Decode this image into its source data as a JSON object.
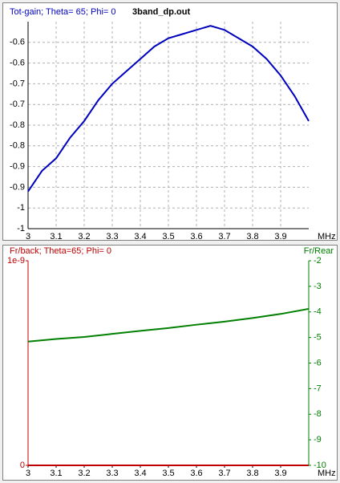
{
  "chart_data": [
    {
      "type": "line",
      "title": "Tot-gain; Theta= 65; Phi= 0",
      "subtitle": "3band_dp.out",
      "title_color": "#0000c0",
      "xlabel": "MHz",
      "x": [
        3.0,
        3.05,
        3.1,
        3.15,
        3.2,
        3.25,
        3.3,
        3.35,
        3.4,
        3.45,
        3.5,
        3.55,
        3.6,
        3.65,
        3.7,
        3.75,
        3.8,
        3.85,
        3.9,
        3.95,
        4.0
      ],
      "series": [
        {
          "color": "#0000c0",
          "values": [
            -0.91,
            -0.86,
            -0.83,
            -0.78,
            -0.74,
            -0.69,
            -0.65,
            -0.62,
            -0.59,
            -0.56,
            -0.54,
            -0.53,
            -0.52,
            -0.51,
            -0.52,
            -0.54,
            -0.56,
            -0.59,
            -0.63,
            -0.68,
            -0.74
          ]
        }
      ],
      "xlim": [
        3,
        4
      ],
      "xticks": [
        3,
        3.1,
        3.2,
        3.3,
        3.4,
        3.5,
        3.6,
        3.7,
        3.8,
        3.9
      ],
      "ylim": [
        -1,
        -0.5
      ],
      "ycolor": "#000000",
      "yticks": [
        {
          "value": -0.55,
          "label": "-0.6"
        },
        -0.6,
        {
          "value": -0.65,
          "label": "-0.7"
        },
        -0.7,
        {
          "value": -0.75,
          "label": "-0.8"
        },
        -0.8,
        {
          "value": -0.85,
          "label": "-0.9"
        },
        -0.9,
        {
          "value": -0.95,
          "label": "-1"
        },
        -1
      ],
      "grid": true
    },
    {
      "type": "line",
      "title": "Fr/back; Theta=65; Phi= 0",
      "title_color": "#c00000",
      "y2label": "Fr/Rear",
      "xlabel": "MHz",
      "x": [
        3.0,
        3.1,
        3.2,
        3.3,
        3.4,
        3.5,
        3.6,
        3.7,
        3.8,
        3.9,
        4.0
      ],
      "series": [
        {
          "color": "#c00000",
          "values": [
            0,
            0,
            0,
            0,
            0,
            0,
            0,
            0,
            0,
            0,
            0
          ]
        },
        {
          "color": "#008000",
          "axis": "y2",
          "values": [
            -5.16,
            -5.06,
            -4.98,
            -4.86,
            -4.74,
            -4.63,
            -4.5,
            -4.38,
            -4.24,
            -4.08,
            -3.88
          ]
        }
      ],
      "xlim": [
        3,
        4
      ],
      "xticks": [
        3,
        3.1,
        3.2,
        3.3,
        3.4,
        3.5,
        3.6,
        3.7,
        3.8,
        3.9
      ],
      "ylim": [
        0,
        1e-09
      ],
      "yticks": [
        {
          "value": 1e-09,
          "label": "1e-9"
        },
        0
      ],
      "ycolor": "#c00000",
      "y2lim": [
        -10,
        -2
      ],
      "y2ticks": [
        -2,
        -3,
        -4,
        -5,
        -6,
        -7,
        -8,
        -9,
        -10
      ],
      "y2color": "#008000",
      "grid": false
    }
  ]
}
